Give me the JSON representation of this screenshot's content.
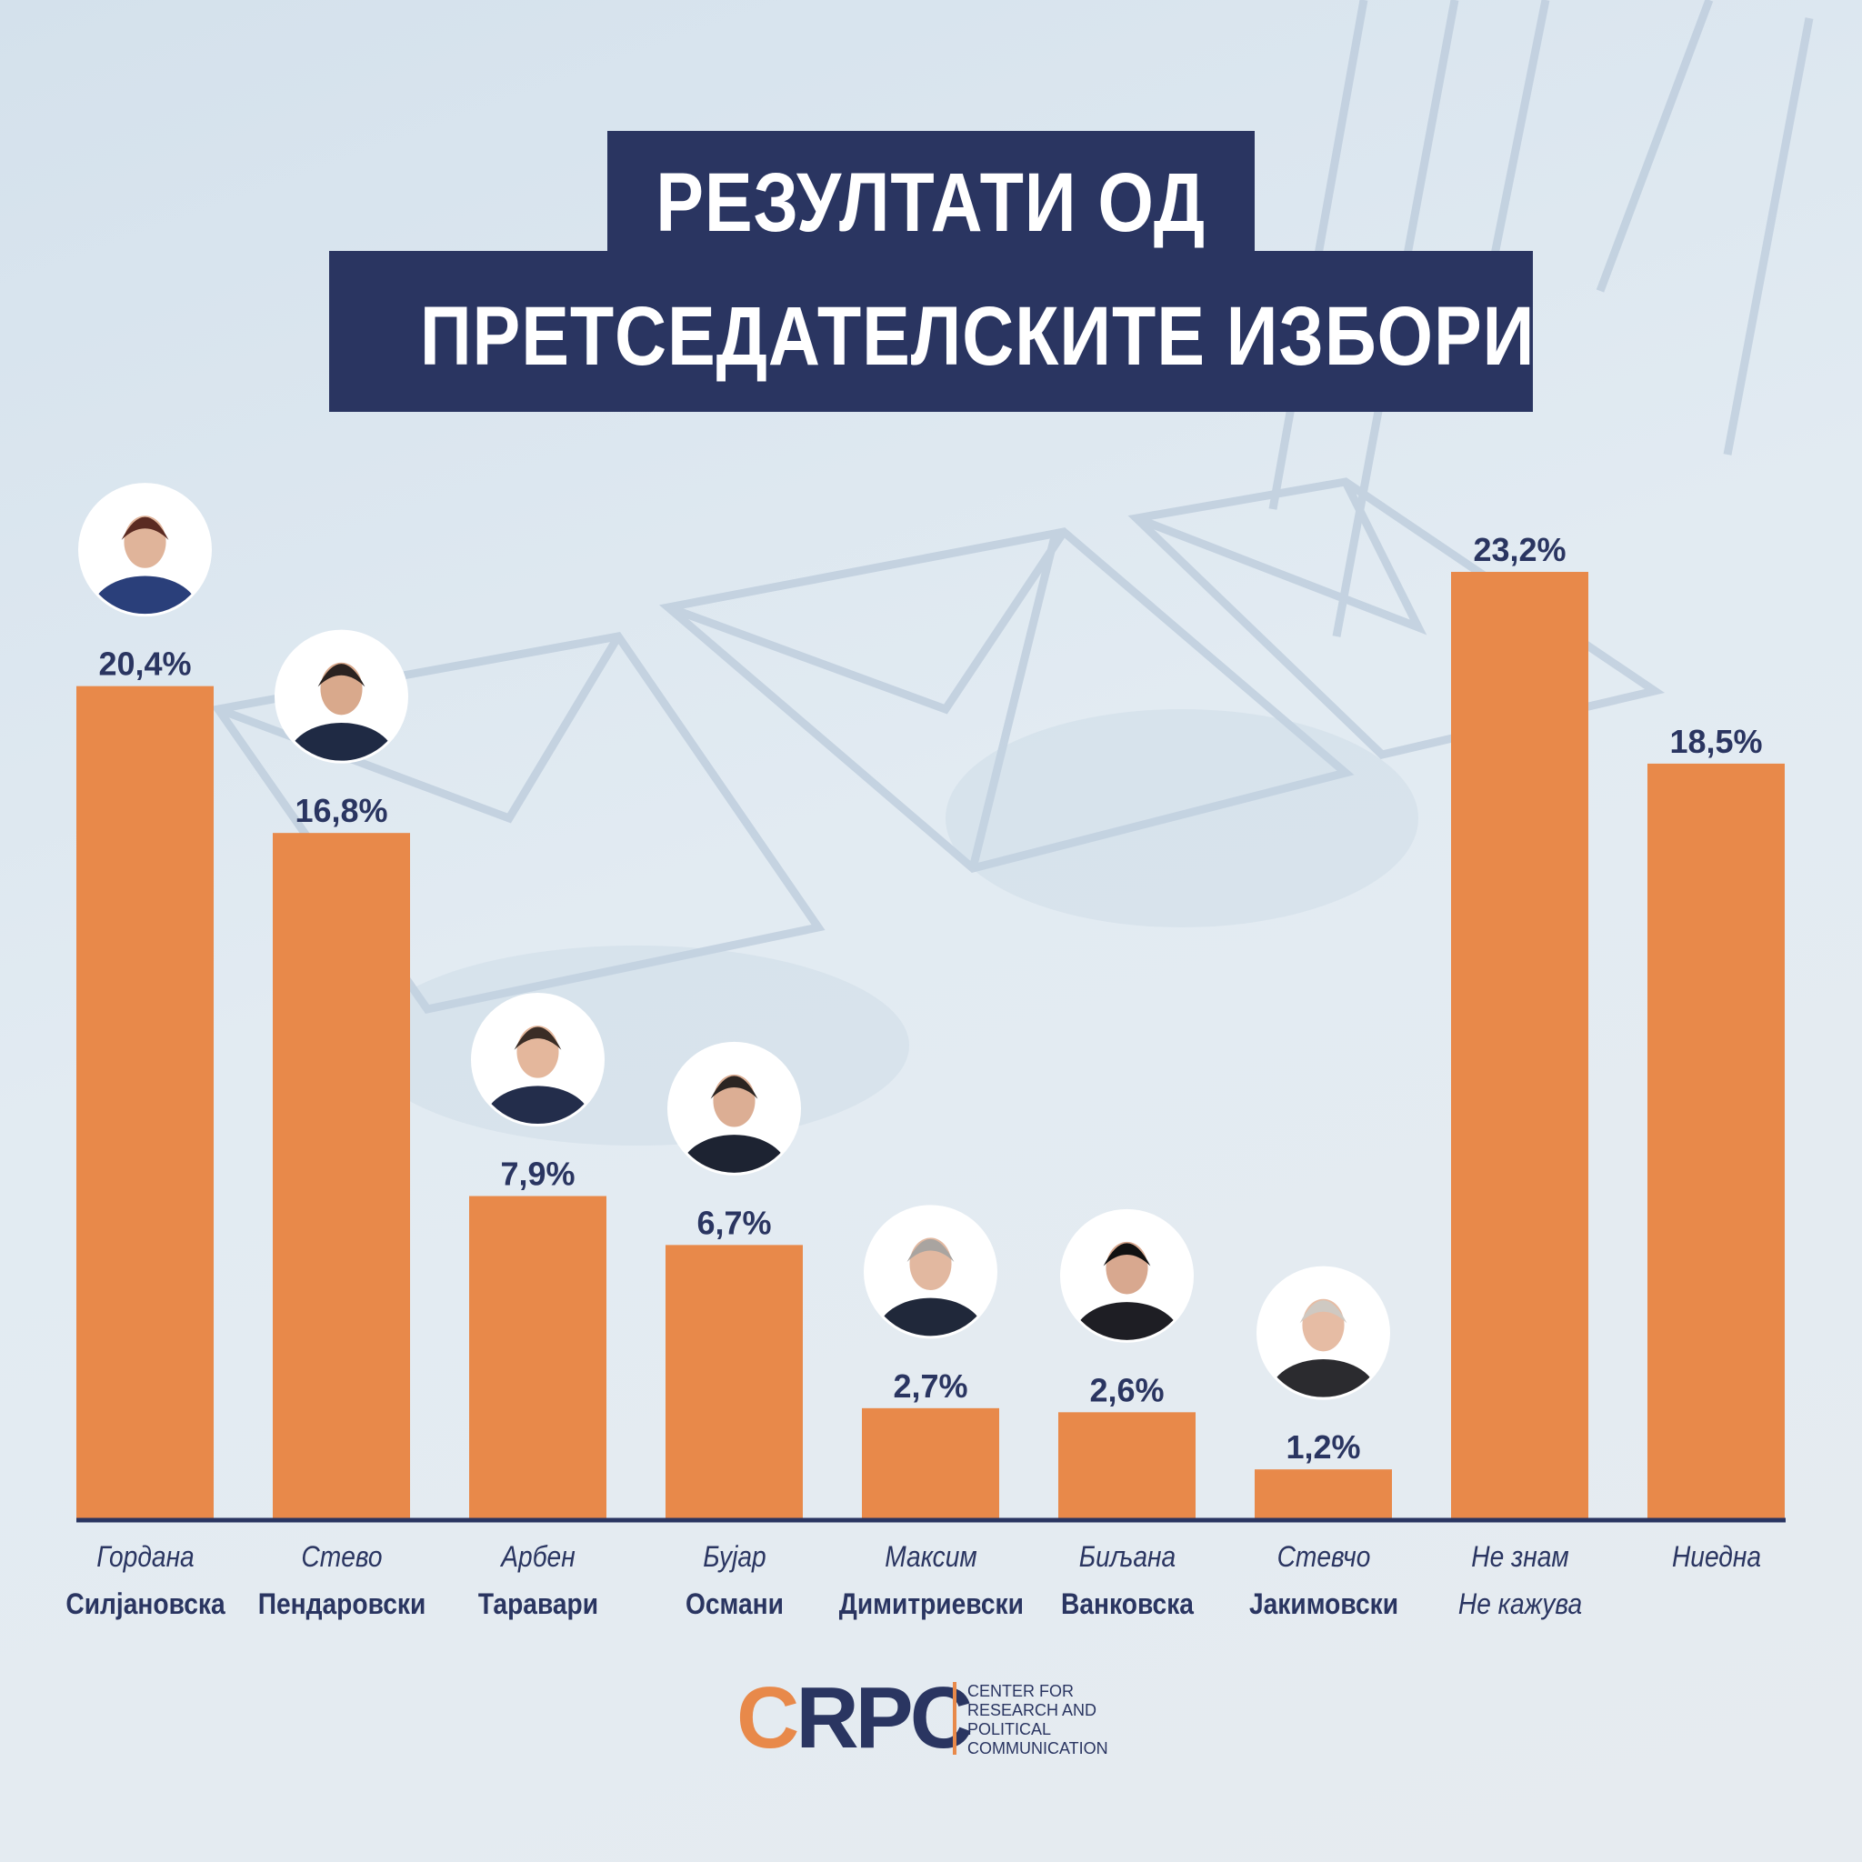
{
  "title": {
    "line1": "РЕЗУЛТАТИ ОД",
    "line2": "ПРЕТСЕДАТЕЛСКИТЕ ИЗБОРИ"
  },
  "chart_data": {
    "type": "bar",
    "title": "РЕЗУЛТАТИ ОД ПРЕТСЕДАТЕЛСКИТЕ ИЗБОРИ",
    "categories": [
      [
        "Гордана",
        "Силјановска"
      ],
      [
        "Стево",
        "Пендаровски"
      ],
      [
        "Арбен",
        "Таравари"
      ],
      [
        "Бујар",
        "Османи"
      ],
      [
        "Максим",
        "Димитриевски"
      ],
      [
        "Биљана",
        "Ванковска"
      ],
      [
        "Стевчо",
        "Јакимовски"
      ],
      [
        "Не знам",
        "Не кажува"
      ],
      [
        "Ниедна",
        ""
      ]
    ],
    "values": [
      20.4,
      16.8,
      7.9,
      6.7,
      2.7,
      2.6,
      1.2,
      23.2,
      18.5
    ],
    "value_labels": [
      "20,4%",
      "16,8%",
      "7,9%",
      "6,7%",
      "2,7%",
      "2,6%",
      "1,2%",
      "23,2%",
      "18,5%"
    ],
    "has_photo": [
      true,
      true,
      true,
      true,
      true,
      true,
      true,
      false,
      false
    ],
    "xlabel": "",
    "ylabel": "",
    "grid": false,
    "legend": "none",
    "bar_color": "#e8894a",
    "label_color": "#2a3561",
    "axis_color": "#2a3561"
  },
  "logo": {
    "mark": "CRPC",
    "text_lines": [
      "CENTER FOR",
      "RESEARCH AND",
      "POLITICAL",
      "COMMUNICATION"
    ],
    "accent_color": "#e8894a",
    "primary_color": "#2a3561"
  }
}
